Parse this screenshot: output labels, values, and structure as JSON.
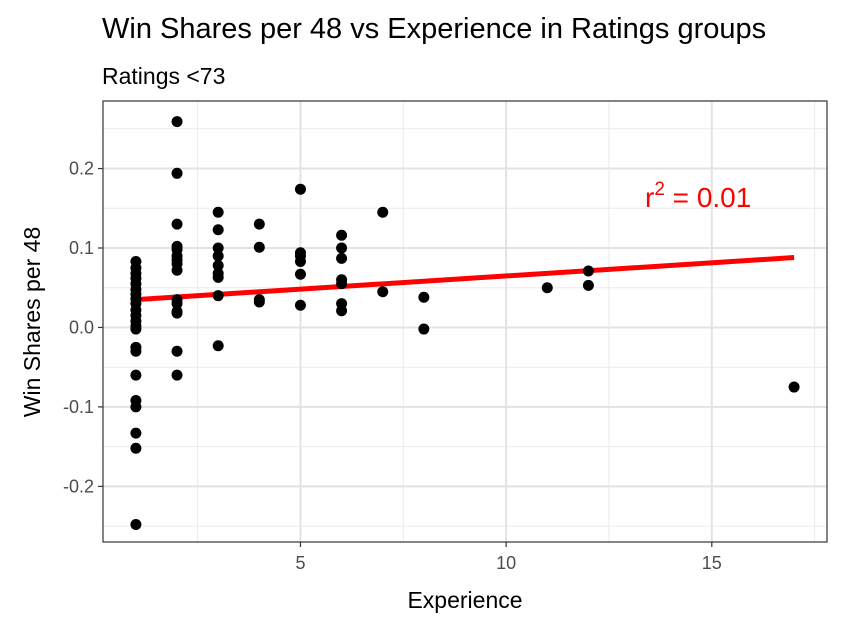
{
  "chart_data": {
    "type": "scatter",
    "title": "Win Shares per 48 vs Experience in Ratings groups",
    "subtitle": "Ratings <73",
    "xlabel": "Experience",
    "ylabel": "Win Shares per 48",
    "xlim": [
      0.2,
      17.8
    ],
    "ylim": [
      -0.27,
      0.285
    ],
    "x_ticks": [
      5,
      10,
      15
    ],
    "x_tick_labels": [
      "5",
      "10",
      "15"
    ],
    "y_ticks": [
      -0.2,
      -0.1,
      0.0,
      0.1,
      0.2
    ],
    "y_tick_labels": [
      "-0.2",
      "-0.1",
      "0.0",
      "0.1",
      "0.2"
    ],
    "grid": true,
    "annotation": {
      "base": "r",
      "superscript": "2",
      "rest": " = 0.01",
      "color": "#ff0000"
    },
    "point_color": "#000000",
    "trendline": {
      "x": [
        1,
        17
      ],
      "y": [
        0.035,
        0.088
      ],
      "color": "#ff0000"
    },
    "points": [
      [
        1,
        0.083
      ],
      [
        1,
        0.075
      ],
      [
        1,
        0.068
      ],
      [
        1,
        0.062
      ],
      [
        1,
        0.055
      ],
      [
        1,
        0.048
      ],
      [
        1,
        0.042
      ],
      [
        1,
        0.036
      ],
      [
        1,
        0.03
      ],
      [
        1,
        0.022
      ],
      [
        1,
        0.015
      ],
      [
        1,
        0.008
      ],
      [
        1,
        0.002
      ],
      [
        1,
        -0.002
      ],
      [
        1,
        -0.025
      ],
      [
        1,
        -0.03
      ],
      [
        1,
        -0.06
      ],
      [
        1,
        -0.092
      ],
      [
        1,
        -0.1
      ],
      [
        1,
        -0.133
      ],
      [
        1,
        -0.152
      ],
      [
        1,
        -0.248
      ],
      [
        2,
        0.259
      ],
      [
        2,
        0.194
      ],
      [
        2,
        0.13
      ],
      [
        2,
        0.102
      ],
      [
        2,
        0.098
      ],
      [
        2,
        0.09
      ],
      [
        2,
        0.085
      ],
      [
        2,
        0.08
      ],
      [
        2,
        0.072
      ],
      [
        2,
        0.035
      ],
      [
        2,
        0.03
      ],
      [
        2,
        0.02
      ],
      [
        2,
        0.018
      ],
      [
        2,
        -0.03
      ],
      [
        2,
        -0.06
      ],
      [
        3,
        0.145
      ],
      [
        3,
        0.123
      ],
      [
        3,
        0.1
      ],
      [
        3,
        0.09
      ],
      [
        3,
        0.078
      ],
      [
        3,
        0.068
      ],
      [
        3,
        0.063
      ],
      [
        3,
        0.04
      ],
      [
        3,
        -0.023
      ],
      [
        4,
        0.13
      ],
      [
        4,
        0.101
      ],
      [
        4,
        0.035
      ],
      [
        4,
        0.032
      ],
      [
        5,
        0.174
      ],
      [
        5,
        0.094
      ],
      [
        5,
        0.09
      ],
      [
        5,
        0.083
      ],
      [
        5,
        0.067
      ],
      [
        5,
        0.028
      ],
      [
        6,
        0.116
      ],
      [
        6,
        0.1
      ],
      [
        6,
        0.087
      ],
      [
        6,
        0.06
      ],
      [
        6,
        0.055
      ],
      [
        6,
        0.03
      ],
      [
        6,
        0.021
      ],
      [
        7,
        0.145
      ],
      [
        7,
        0.045
      ],
      [
        8,
        0.038
      ],
      [
        8,
        -0.002
      ],
      [
        11,
        0.05
      ],
      [
        12,
        0.071
      ],
      [
        12,
        0.053
      ],
      [
        17,
        -0.075
      ]
    ]
  }
}
